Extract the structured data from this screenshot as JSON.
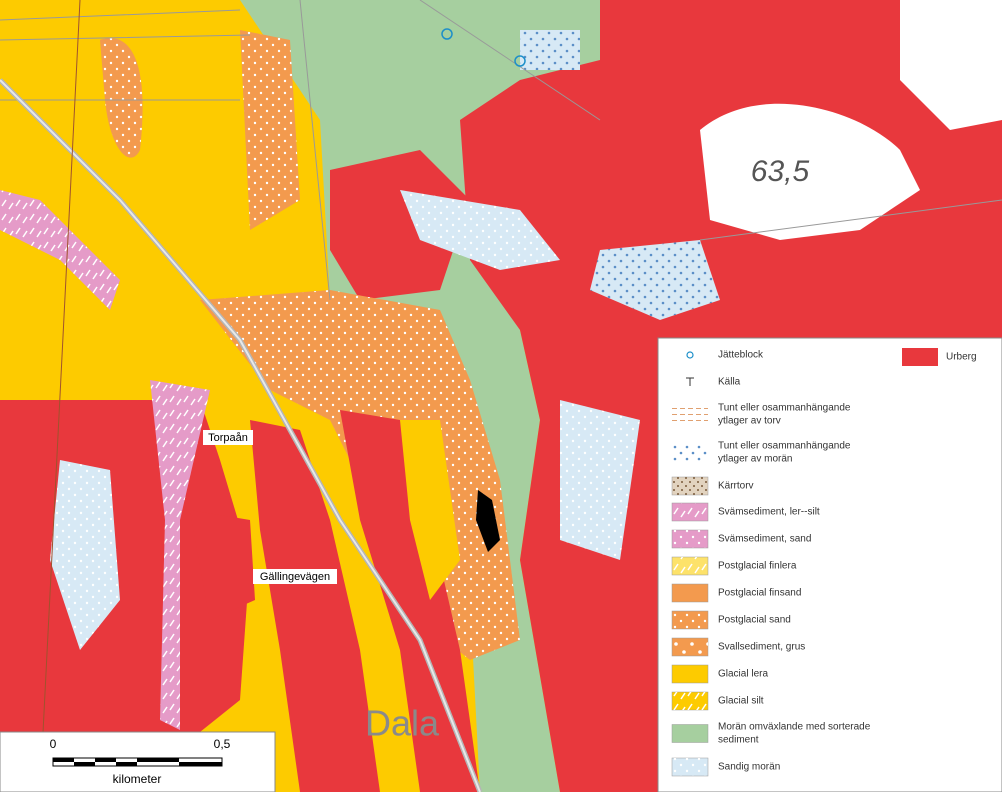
{
  "map": {
    "labels": [
      "63,5",
      "Torpaån",
      "Gällingevägen",
      "Dala"
    ],
    "scale_bar": {
      "ticks": [
        "0",
        "0,5"
      ],
      "unit": "kilometer"
    },
    "legend": {
      "urberg": {
        "lines": [
          "Urberg"
        ],
        "color": "#e8383d"
      },
      "items": [
        {
          "lines": [
            "Jätteblock"
          ],
          "symbol": "block"
        },
        {
          "lines": [
            "Källa"
          ],
          "symbol": "spring"
        },
        {
          "lines": [
            "Tunt eller osammanhängande",
            "ytlager av torv"
          ],
          "symbol": "dash"
        },
        {
          "lines": [
            "Tunt eller osammanhängande",
            "ytlager av morän"
          ],
          "symbol": "bluedots"
        },
        {
          "lines": [
            "Kärrtorv"
          ],
          "color": "#e2d3bf",
          "pattern": "brown"
        },
        {
          "lines": [
            "Svämsediment, ler--silt"
          ],
          "color": "#e59bc8",
          "pattern": "dash"
        },
        {
          "lines": [
            "Svämsediment, sand"
          ],
          "color": "#e59bc8",
          "pattern": "white"
        },
        {
          "lines": [
            "Postglacial finlera"
          ],
          "color": "#fde26a",
          "pattern": "dash"
        },
        {
          "lines": [
            "Postglacial finsand"
          ],
          "color": "#f39a4e"
        },
        {
          "lines": [
            "Postglacial sand"
          ],
          "color": "#f39a4e",
          "pattern": "white"
        },
        {
          "lines": [
            "Svallsediment, grus"
          ],
          "color": "#f39a4e",
          "pattern": "big"
        },
        {
          "lines": [
            "Glacial lera"
          ],
          "color": "#fdcb00"
        },
        {
          "lines": [
            "Glacial silt"
          ],
          "color": "#fdcb00",
          "pattern": "dash"
        },
        {
          "lines": [
            "Morän omväxlande med sorterade",
            "sediment"
          ],
          "color": "#a6cf9f"
        },
        {
          "lines": [
            "Sandig morän"
          ],
          "color": "#d7e9f5",
          "pattern": "white"
        }
      ]
    }
  }
}
